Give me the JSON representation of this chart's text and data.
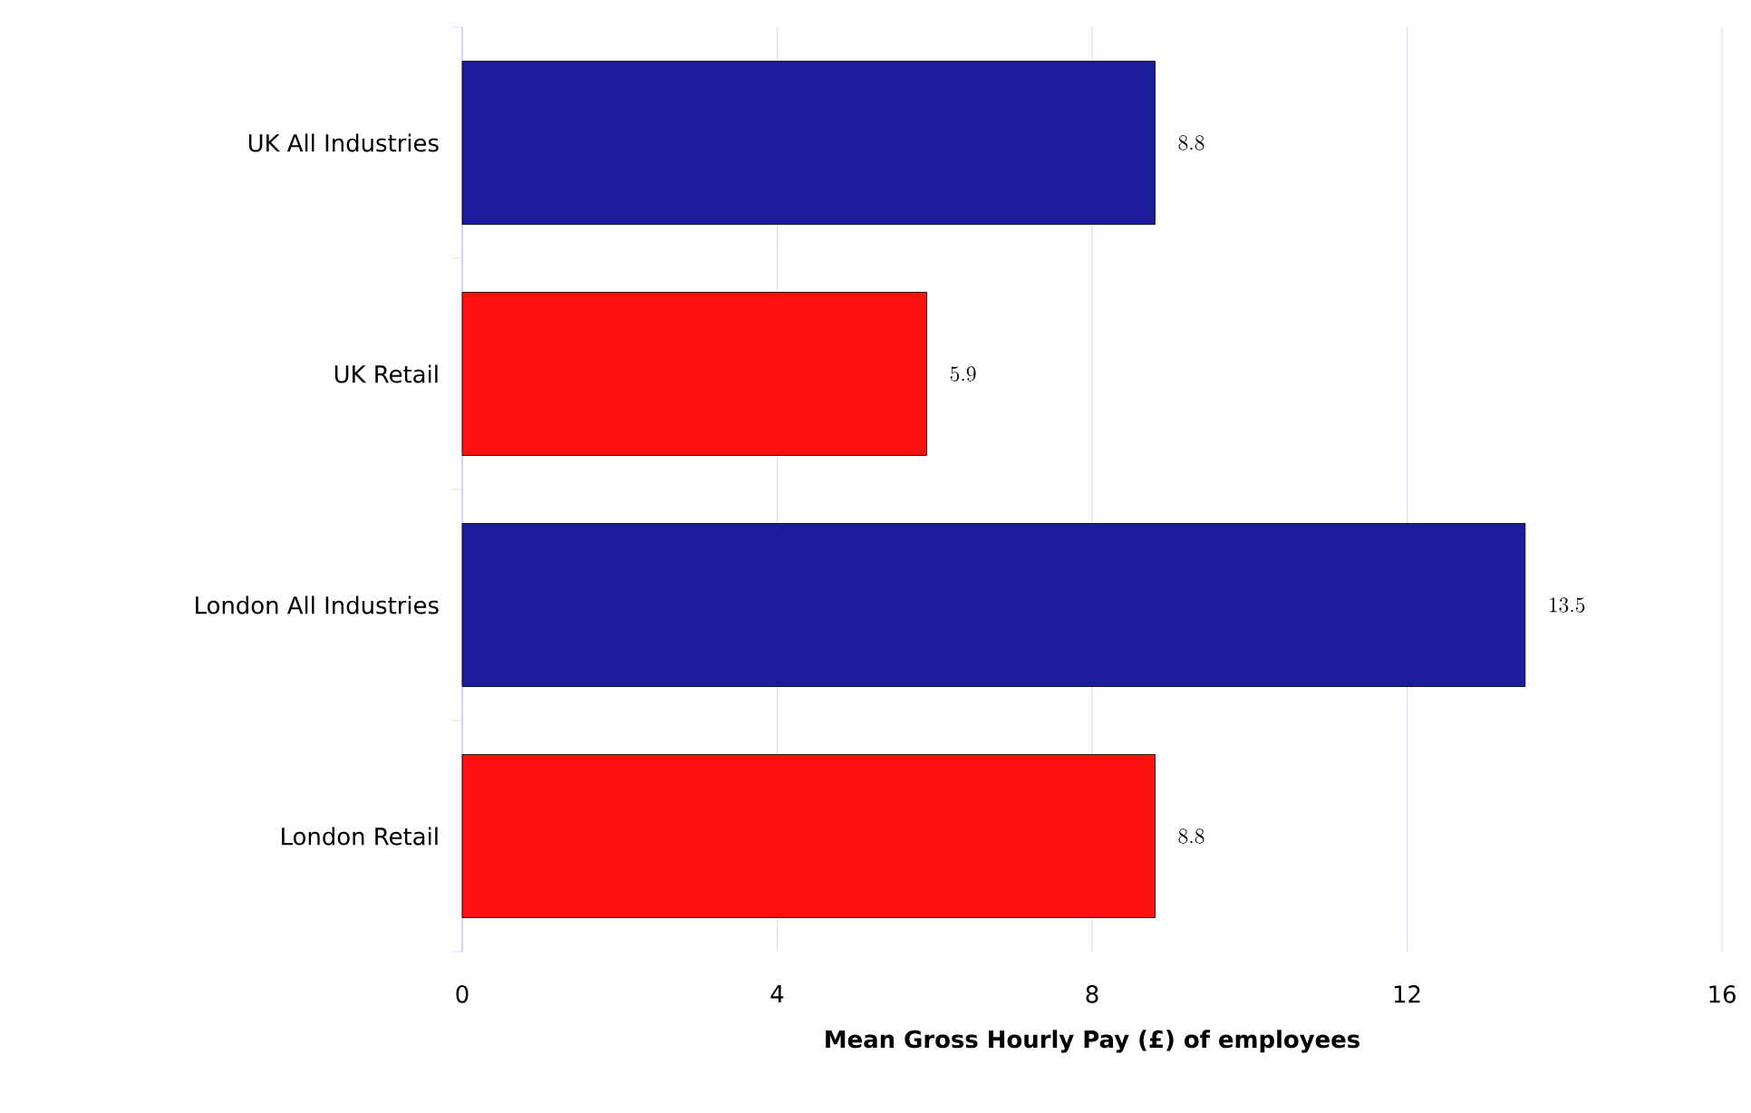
{
  "chart_data": {
    "type": "bar",
    "orientation": "horizontal",
    "xlabel": "Mean Gross Hourly Pay (£) of employees",
    "categories": [
      "UK All Industries",
      "UK Retail",
      "London All Industries",
      "London Retail"
    ],
    "values": [
      8.8,
      5.9,
      13.5,
      8.8
    ],
    "colors": [
      "#1c1c9a",
      "#ff1010",
      "#1c1c9a",
      "#ff1010"
    ],
    "xlim": [
      0,
      16
    ],
    "xticks": [
      0,
      4,
      8,
      12,
      16
    ],
    "grid": "x",
    "data_labels": true
  }
}
